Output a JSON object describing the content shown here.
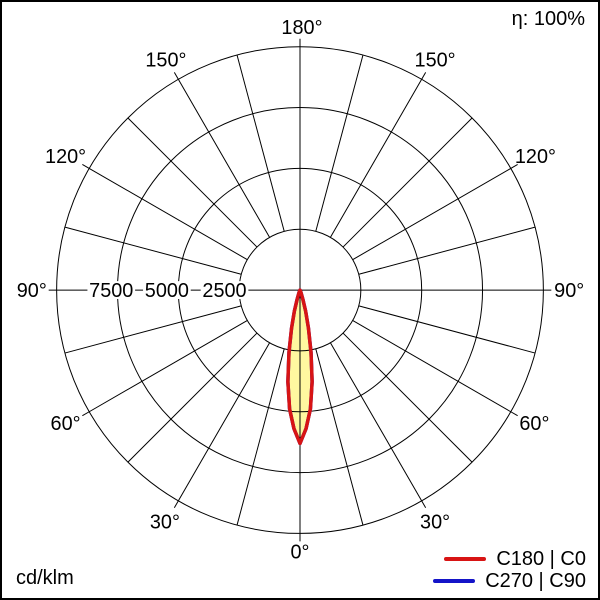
{
  "meta": {
    "efficiency_label": "η: 100%",
    "unit_label": "cd/klm"
  },
  "legend": {
    "items": [
      {
        "label": "C180 | C0",
        "color": "#d81414"
      },
      {
        "label": "C270 | C90",
        "color": "#1414c8"
      }
    ]
  },
  "polar_grid": {
    "angle_labels": {
      "top": "180°",
      "left_150": "150°",
      "right_150": "150°",
      "left_120": "120°",
      "right_120": "120°",
      "left_90": "90°",
      "right_90": "90°",
      "left_60": "60°",
      "right_60": "60°",
      "left_30": "30°",
      "right_30": "30°",
      "bottom": "0°"
    },
    "radial_labels": [
      "7500",
      "5000",
      "2500"
    ]
  },
  "chart_data": {
    "type": "polar",
    "subtype": "luminous-intensity-distribution",
    "unit": "cd/klm",
    "efficiency": "η: 100%",
    "radial_ticks": [
      2500,
      5000,
      7500
    ],
    "radial_max": 10000,
    "angle_tick_labels_deg": [
      0,
      30,
      60,
      90,
      120,
      150,
      180
    ],
    "angle_grid_step_deg": 15,
    "grid": true,
    "legend_position": "bottom-right",
    "beam_fill_color": "#fff8a0",
    "series": [
      {
        "name": "C180 | C0",
        "color": "#d81414",
        "gamma_deg": [
          0,
          2.5,
          5,
          7.5,
          10,
          12.5,
          15,
          17.5,
          20,
          22.5,
          25,
          30,
          45,
          60,
          75,
          90
        ],
        "intensity_cd_klm": [
          6300,
          5700,
          4900,
          3800,
          2600,
          1600,
          900,
          400,
          150,
          60,
          20,
          0,
          0,
          0,
          0,
          0
        ]
      },
      {
        "name": "C270 | C90",
        "color": "#1414c8",
        "gamma_deg": [
          0,
          2.5,
          5,
          7.5,
          10,
          12.5,
          15,
          17.5,
          20,
          22.5,
          25,
          30,
          45,
          60,
          75,
          90
        ],
        "intensity_cd_klm": [
          6300,
          5700,
          4900,
          3800,
          2600,
          1600,
          900,
          400,
          150,
          60,
          20,
          0,
          0,
          0,
          0,
          0
        ]
      }
    ]
  }
}
